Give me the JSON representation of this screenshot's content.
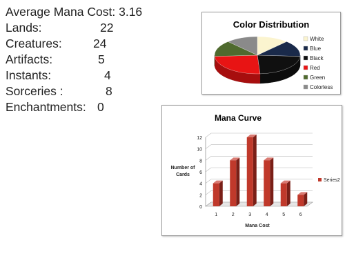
{
  "stats": {
    "average_mana_cost": {
      "label": "Average Mana Cost:",
      "value": "3.16"
    },
    "rows": [
      {
        "label": "Lands:",
        "value": "22"
      },
      {
        "label": "Creatures:",
        "value": "24"
      },
      {
        "label": "Artifacts:",
        "value": "5"
      },
      {
        "label": "Instants:",
        "value": "4"
      },
      {
        "label": "Sorceries :",
        "value": "8"
      },
      {
        "label": "Enchantments:",
        "value": "0"
      }
    ]
  },
  "chart_data": [
    {
      "type": "pie",
      "title": "Color Distribution",
      "categories": [
        "White",
        "Blue",
        "Black",
        "Red",
        "Green",
        "Colorless"
      ],
      "values": [
        12,
        14,
        23,
        25,
        14,
        12
      ],
      "colors": [
        "#fbf4cf",
        "#1a2a4a",
        "#101010",
        "#e81414",
        "#4f6a2e",
        "#8a8a8a"
      ],
      "legend_position": "right",
      "style": "3d"
    },
    {
      "type": "bar",
      "title": "Mana Curve",
      "categories": [
        "1",
        "2",
        "3",
        "4",
        "5",
        "6"
      ],
      "series": [
        {
          "name": "Series2",
          "values": [
            4,
            8,
            12,
            8,
            4,
            2
          ]
        }
      ],
      "xlabel": "Mana Cost",
      "ylabel": "Number of Cards",
      "ylim": [
        0,
        12
      ],
      "yticks": [
        0,
        2,
        4,
        6,
        8,
        10,
        12
      ],
      "grid": true,
      "legend_position": "right",
      "bar_color": "#c0392b",
      "style": "3d"
    }
  ]
}
